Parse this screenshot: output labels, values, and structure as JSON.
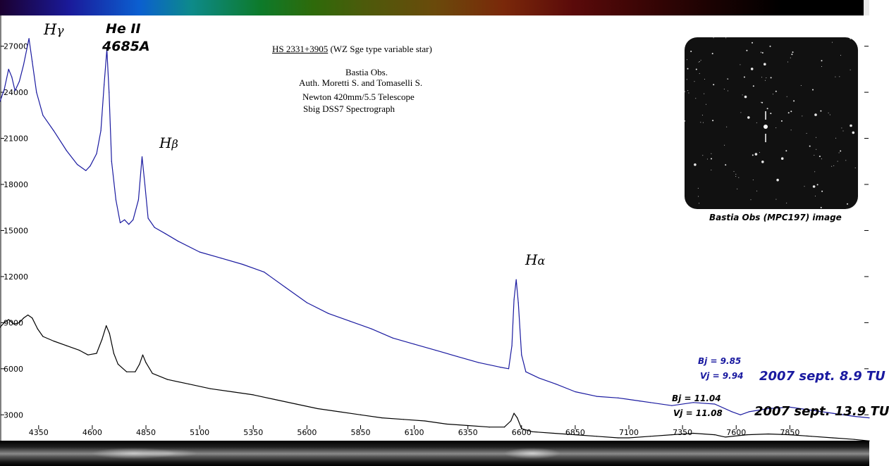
{
  "info": {
    "object_title": "HS 2331+3905",
    "object_type": "(WZ Sge type variable star)",
    "observatory": "Bastia Obs.",
    "authors": "Auth. Moretti S. and Tomaselli S.",
    "telescope": "Newton 420mm/5.5 Telescope",
    "spectrograph": "Sbig DSS7 Spectrograph"
  },
  "image_caption": "Bastia Obs (MPC197) image",
  "annotations": {
    "blue_bj": "Bj = 9.85",
    "blue_vj": "Vj = 9.94",
    "blue_date": "2007 sept. 8.9 TU",
    "black_bj": "Bj = 11.04",
    "black_vj": "Vj = 11.08",
    "black_date": "2007 sept. 13.9 TU",
    "line_hgamma_sym": "H",
    "line_hgamma_greek": "γ",
    "line_heii_1": "He II",
    "line_heii_2": "4685A",
    "line_hbeta_sym": "H",
    "line_hbeta_greek": "β",
    "line_halpha_sym": "H",
    "line_halpha_greek": "α"
  },
  "colors": {
    "blue_series": "#1a1aa0",
    "black_series": "#000000",
    "blue_text": "#1a1aa0"
  },
  "chart_data": {
    "type": "line",
    "xlim": [
      4170,
      8220
    ],
    "ylim": [
      1500,
      29000
    ],
    "x_ticks": [
      4350,
      4600,
      4850,
      5100,
      5350,
      5600,
      5850,
      6100,
      6350,
      6600,
      6850,
      7100,
      7350,
      7600,
      7850
    ],
    "y_ticks": [
      3000,
      6000,
      9000,
      12000,
      15000,
      18000,
      21000,
      24000,
      27000
    ],
    "series": [
      {
        "color": "#1a1aa0",
        "points": [
          [
            4170,
            23400
          ],
          [
            4190,
            24200
          ],
          [
            4210,
            25500
          ],
          [
            4225,
            25000
          ],
          [
            4240,
            24100
          ],
          [
            4260,
            24700
          ],
          [
            4280,
            25800
          ],
          [
            4305,
            27500
          ],
          [
            4320,
            26000
          ],
          [
            4340,
            24000
          ],
          [
            4370,
            22500
          ],
          [
            4420,
            21500
          ],
          [
            4480,
            20200
          ],
          [
            4530,
            19300
          ],
          [
            4570,
            18900
          ],
          [
            4590,
            19200
          ],
          [
            4620,
            20000
          ],
          [
            4640,
            21500
          ],
          [
            4655,
            24500
          ],
          [
            4668,
            26800
          ],
          [
            4678,
            24000
          ],
          [
            4690,
            19500
          ],
          [
            4710,
            17000
          ],
          [
            4730,
            15500
          ],
          [
            4750,
            15700
          ],
          [
            4770,
            15400
          ],
          [
            4790,
            15700
          ],
          [
            4815,
            17000
          ],
          [
            4832,
            19800
          ],
          [
            4845,
            18000
          ],
          [
            4860,
            15800
          ],
          [
            4890,
            15200
          ],
          [
            4940,
            14800
          ],
          [
            5000,
            14300
          ],
          [
            5100,
            13600
          ],
          [
            5200,
            13200
          ],
          [
            5300,
            12800
          ],
          [
            5400,
            12300
          ],
          [
            5500,
            11300
          ],
          [
            5600,
            10300
          ],
          [
            5700,
            9600
          ],
          [
            5800,
            9100
          ],
          [
            5900,
            8600
          ],
          [
            6000,
            8000
          ],
          [
            6100,
            7600
          ],
          [
            6200,
            7200
          ],
          [
            6300,
            6800
          ],
          [
            6400,
            6400
          ],
          [
            6500,
            6100
          ],
          [
            6540,
            6000
          ],
          [
            6555,
            7500
          ],
          [
            6565,
            10500
          ],
          [
            6575,
            11800
          ],
          [
            6585,
            10300
          ],
          [
            6600,
            6900
          ],
          [
            6620,
            5800
          ],
          [
            6680,
            5400
          ],
          [
            6760,
            5000
          ],
          [
            6850,
            4500
          ],
          [
            6950,
            4200
          ],
          [
            7050,
            4100
          ],
          [
            7150,
            3900
          ],
          [
            7200,
            3800
          ],
          [
            7300,
            3600
          ],
          [
            7400,
            3800
          ],
          [
            7500,
            3700
          ],
          [
            7580,
            3200
          ],
          [
            7620,
            3000
          ],
          [
            7660,
            3200
          ],
          [
            7750,
            3400
          ],
          [
            7850,
            3500
          ],
          [
            7950,
            3300
          ],
          [
            8050,
            3100
          ],
          [
            8150,
            2900
          ],
          [
            8220,
            2800
          ]
        ]
      },
      {
        "color": "#000000",
        "points": [
          [
            4170,
            8700
          ],
          [
            4190,
            9000
          ],
          [
            4210,
            9200
          ],
          [
            4235,
            8900
          ],
          [
            4260,
            9000
          ],
          [
            4280,
            9300
          ],
          [
            4300,
            9500
          ],
          [
            4320,
            9300
          ],
          [
            4345,
            8600
          ],
          [
            4370,
            8100
          ],
          [
            4420,
            7800
          ],
          [
            4480,
            7500
          ],
          [
            4540,
            7200
          ],
          [
            4580,
            6900
          ],
          [
            4620,
            7000
          ],
          [
            4645,
            7900
          ],
          [
            4665,
            8800
          ],
          [
            4680,
            8300
          ],
          [
            4700,
            7000
          ],
          [
            4720,
            6300
          ],
          [
            4760,
            5800
          ],
          [
            4800,
            5800
          ],
          [
            4820,
            6300
          ],
          [
            4835,
            6900
          ],
          [
            4850,
            6400
          ],
          [
            4880,
            5700
          ],
          [
            4950,
            5300
          ],
          [
            5050,
            5000
          ],
          [
            5150,
            4700
          ],
          [
            5250,
            4500
          ],
          [
            5350,
            4300
          ],
          [
            5450,
            4000
          ],
          [
            5550,
            3700
          ],
          [
            5650,
            3400
          ],
          [
            5750,
            3200
          ],
          [
            5850,
            3000
          ],
          [
            5950,
            2800
          ],
          [
            6050,
            2700
          ],
          [
            6150,
            2600
          ],
          [
            6250,
            2400
          ],
          [
            6350,
            2300
          ],
          [
            6450,
            2200
          ],
          [
            6520,
            2200
          ],
          [
            6550,
            2600
          ],
          [
            6565,
            3100
          ],
          [
            6580,
            2800
          ],
          [
            6600,
            2100
          ],
          [
            6650,
            1900
          ],
          [
            6750,
            1800
          ],
          [
            6850,
            1700
          ],
          [
            6950,
            1600
          ],
          [
            7050,
            1500
          ],
          [
            7100,
            1500
          ],
          [
            7200,
            1600
          ],
          [
            7300,
            1700
          ],
          [
            7400,
            1800
          ],
          [
            7500,
            1700
          ],
          [
            7550,
            1550
          ],
          [
            7650,
            1700
          ],
          [
            7750,
            1750
          ],
          [
            7850,
            1700
          ],
          [
            7950,
            1600
          ],
          [
            8050,
            1500
          ],
          [
            8150,
            1400
          ],
          [
            8220,
            1300
          ]
        ]
      }
    ]
  }
}
